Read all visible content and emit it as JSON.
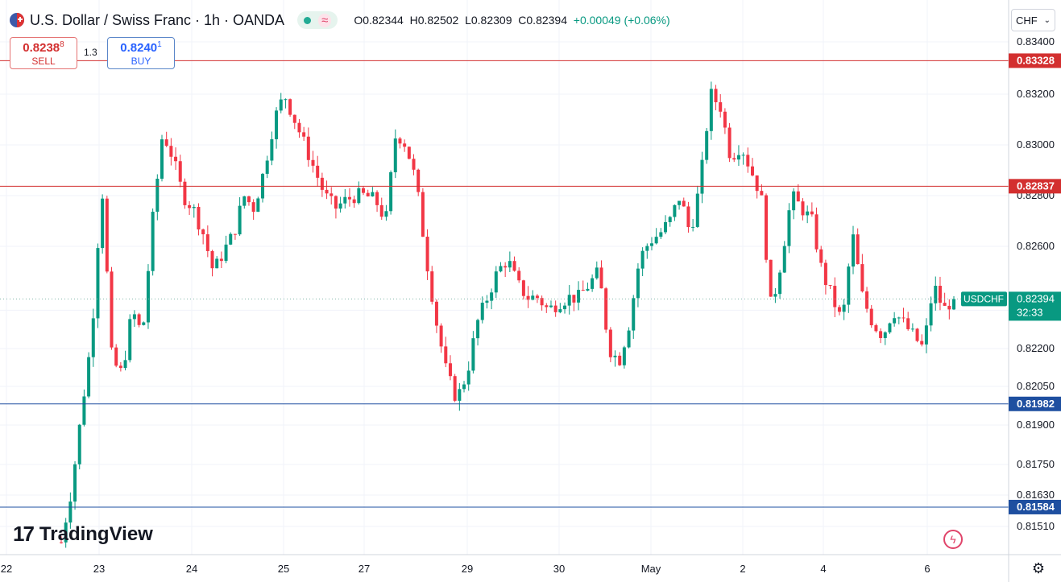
{
  "header": {
    "title": "U.S. Dollar / Swiss Franc · 1h · OANDA",
    "wave_glyph": "≈",
    "ohlc": {
      "o": "O0.82344",
      "h": "H0.82502",
      "l": "L0.82309",
      "c": "C0.82394",
      "chg": "+0.00049 (+0.06%)"
    }
  },
  "trade": {
    "sell_price": "0.8238",
    "sell_small": "8",
    "sell_label": "SELL",
    "spread": "1.3",
    "buy_price": "0.8240",
    "buy_small": "1",
    "buy_label": "BUY"
  },
  "currency_button": {
    "label": "CHF",
    "chev": "⌄"
  },
  "branding": {
    "mark": "17",
    "word": "TradingView"
  },
  "icons": {
    "flag": "us-flag-icon",
    "wave": "wave-icon",
    "flash": "flash-icon",
    "settings": "settings-icon"
  },
  "colors": {
    "up": "#089981",
    "down": "#f23645",
    "resistance": "#d32f2f",
    "support": "#1e4fa0",
    "grid": "#f0f3fa",
    "axis_text": "#131722"
  },
  "chart_data": {
    "type": "candlestick",
    "symbol": "USDCHF",
    "timeframe": "1h",
    "y_ticks": [
      0.834,
      0.832,
      0.83,
      0.828,
      0.826,
      0.8235,
      0.822,
      0.8205,
      0.819,
      0.8175,
      0.8163,
      0.8151
    ],
    "y_tick_labels": [
      "0.83400",
      "0.83200",
      "0.83000",
      "0.82800",
      "0.82600",
      "",
      "0.82200",
      "0.82050",
      "0.81900",
      "0.81750",
      "0.81630",
      "0.81510"
    ],
    "x_labels": [
      "22",
      "23",
      "24",
      "25",
      "27",
      "29",
      "30",
      "May",
      "2",
      "4",
      "6"
    ],
    "horizontal_lines": [
      {
        "value": 0.83328,
        "label": "0.83328",
        "color": "#d32f2f"
      },
      {
        "value": 0.82837,
        "label": "0.82837",
        "color": "#d32f2f"
      },
      {
        "value": 0.81982,
        "label": "0.81982",
        "color": "#1e4fa0"
      },
      {
        "value": 0.81584,
        "label": "0.81584",
        "color": "#1e4fa0"
      }
    ],
    "last_price": {
      "value": 0.82394,
      "label": "0.82394",
      "symbol": "USDCHF",
      "countdown": "32:33"
    },
    "trend_path": [
      0.8145,
      0.8165,
      0.8195,
      0.8225,
      0.8285,
      0.8215,
      0.821,
      0.8235,
      0.8225,
      0.827,
      0.8305,
      0.8295,
      0.828,
      0.8275,
      0.8265,
      0.825,
      0.8258,
      0.8265,
      0.828,
      0.8275,
      0.829,
      0.831,
      0.832,
      0.831,
      0.83,
      0.829,
      0.828,
      0.8275,
      0.8278,
      0.828,
      0.828,
      0.8278,
      0.827,
      0.8305,
      0.83,
      0.8285,
      0.8255,
      0.823,
      0.821,
      0.82,
      0.821,
      0.823,
      0.824,
      0.825,
      0.8255,
      0.8245,
      0.824,
      0.824,
      0.8235,
      0.8238,
      0.824,
      0.824,
      0.8245,
      0.825,
      0.822,
      0.8215,
      0.823,
      0.8255,
      0.8262,
      0.8265,
      0.827,
      0.828,
      0.8265,
      0.8285,
      0.832,
      0.8315,
      0.8295,
      0.83,
      0.829,
      0.828,
      0.8235,
      0.8255,
      0.828,
      0.8275,
      0.827,
      0.825,
      0.824,
      0.823,
      0.8265,
      0.824,
      0.823,
      0.8225,
      0.8235,
      0.823,
      0.8225,
      0.822,
      0.8245,
      0.8235,
      0.824
    ]
  }
}
